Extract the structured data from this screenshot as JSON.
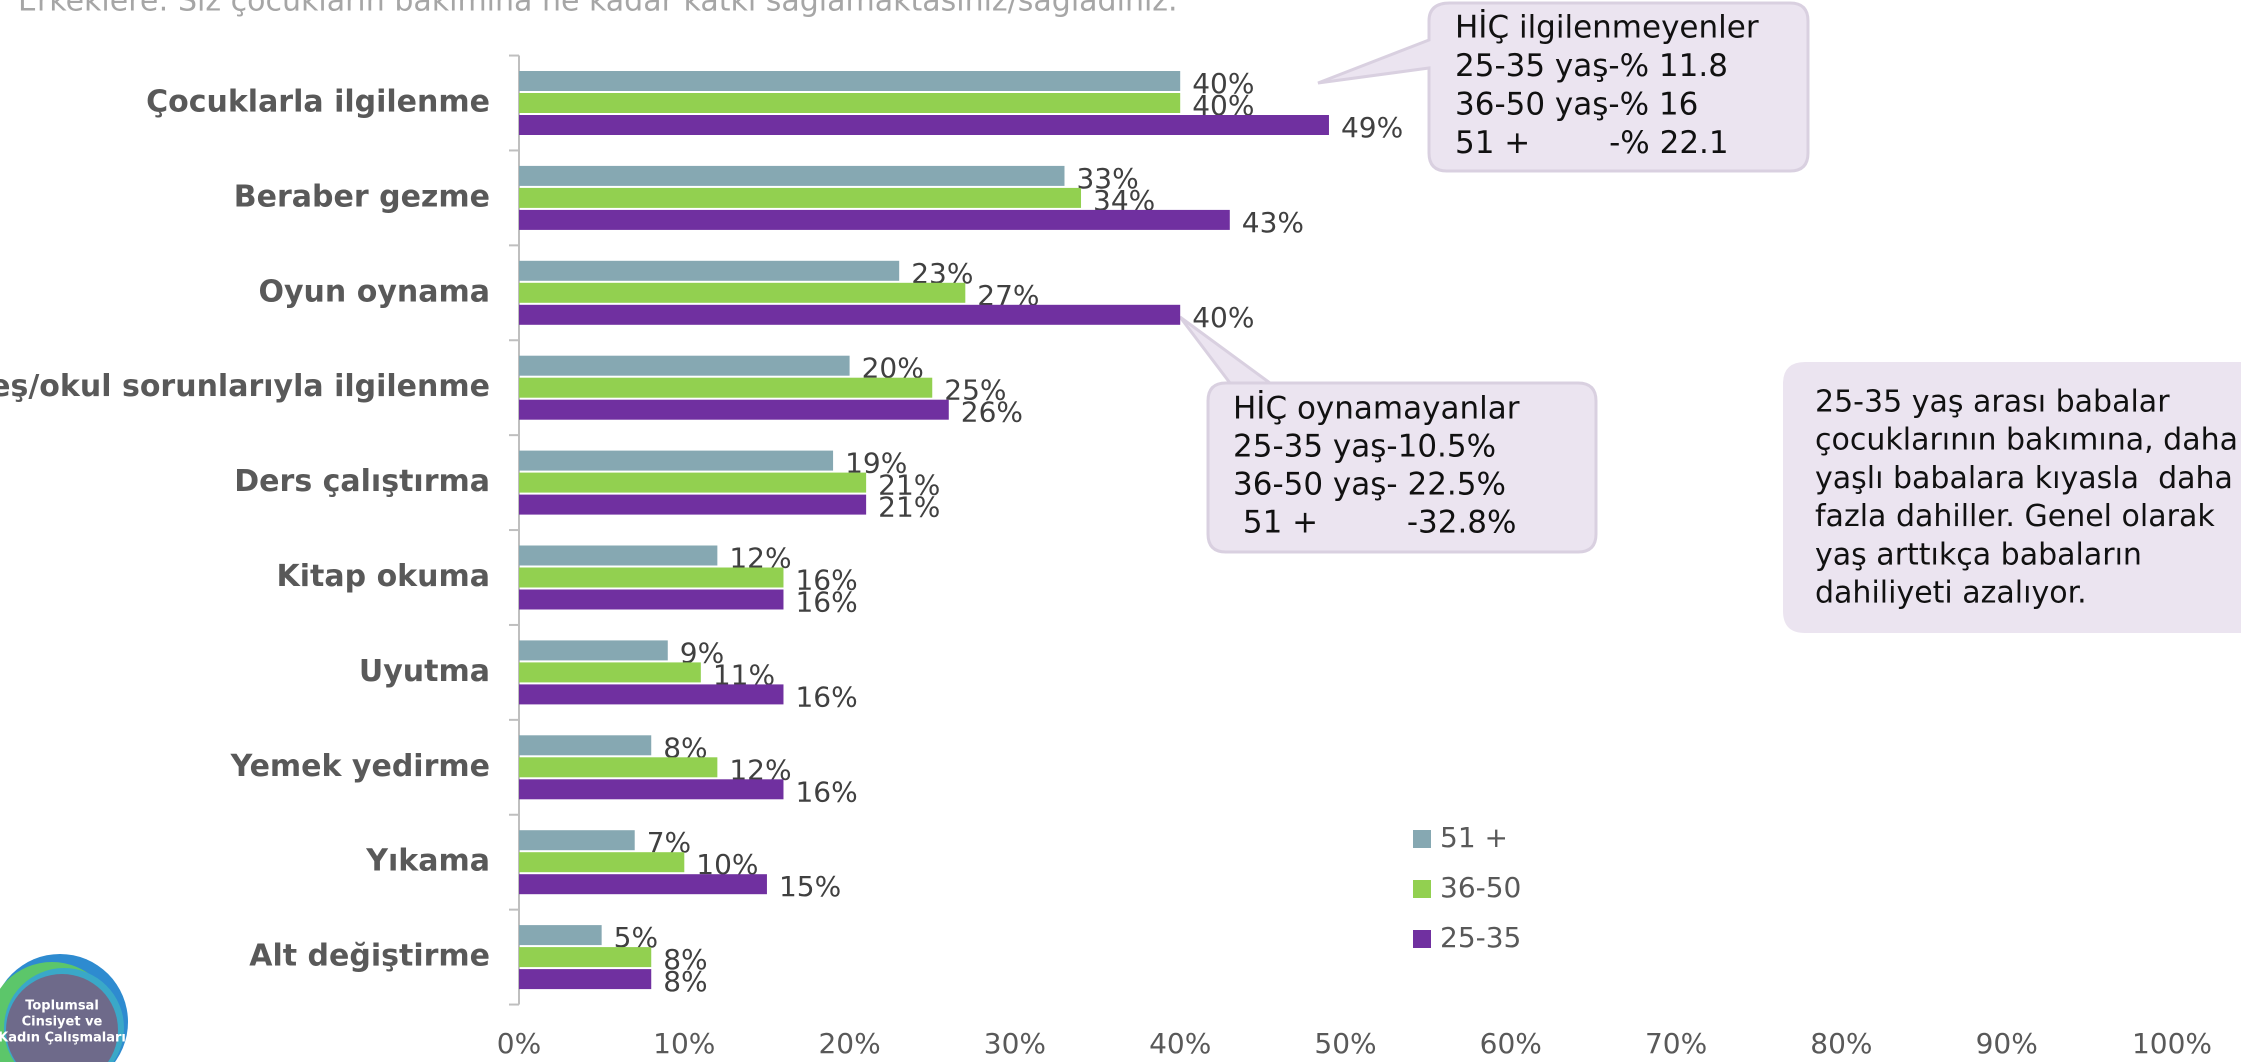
{
  "chart_data": {
    "type": "hbar",
    "title": "Erkeklere: Siz çocukların bakımına ne kadar katkı sağlamaktasınız/sağladınız.",
    "categories": [
      "Çocuklarla ilgilenme",
      "Beraber gezme",
      "Oyun oynama",
      "Kreş/okul sorunlarıyla ilgilenme",
      "Ders çalıştırma",
      "Kitap okuma",
      "Uyutma",
      "Yemek yedirme",
      "Yıkama",
      "Alt değiştirme"
    ],
    "series": [
      {
        "name": "51 +",
        "color": "#86a8b2",
        "values": [
          40,
          33,
          23,
          20,
          19,
          12,
          9,
          8,
          7,
          5
        ],
        "value_labels": [
          "40%",
          "33%",
          "23%",
          "20%",
          "19%",
          "12%",
          "9%",
          "8%",
          "7%",
          "5%"
        ]
      },
      {
        "name": "36-50",
        "color": "#92d050",
        "values": [
          40,
          34,
          27,
          25,
          21,
          16,
          11,
          12,
          10,
          8
        ],
        "value_labels": [
          "40%",
          "34%",
          "27%",
          "25%",
          "21%",
          "16%",
          "11%",
          "12%",
          "10%",
          "8%"
        ]
      },
      {
        "name": "25-35",
        "color": "#7030a0",
        "values": [
          49,
          43,
          40,
          26,
          21,
          16,
          16,
          16,
          15,
          8
        ],
        "value_labels": [
          "49%",
          "43%",
          "40%",
          "26%",
          "21%",
          "16%",
          "16%",
          "16%",
          "15%",
          "8%"
        ]
      }
    ],
    "xlim": [
      0,
      100
    ],
    "xticks": [
      {
        "value": 0,
        "label": "0%"
      },
      {
        "value": 10,
        "label": "10%"
      },
      {
        "value": 20,
        "label": "20%"
      },
      {
        "value": 30,
        "label": "30%"
      },
      {
        "value": 40,
        "label": "40%"
      },
      {
        "value": 50,
        "label": "50%"
      },
      {
        "value": 60,
        "label": "60%"
      },
      {
        "value": 70,
        "label": "70%"
      },
      {
        "value": 80,
        "label": "80%"
      },
      {
        "value": 90,
        "label": "90%"
      },
      {
        "value": 100,
        "label": "100%"
      }
    ],
    "legend": "lower right",
    "annotations": [
      {
        "lines": [
          "HİÇ ilgilenmeyenler",
          "25-35 yaş-% 11.8",
          "36-50 yaş-% 16",
          "51 +        -% 22.1"
        ]
      },
      {
        "lines": [
          "HİÇ oynamayanlar",
          "25-35 yaş-10.5%",
          "36-50 yaş- 22.5%",
          " 51 +         -32.8%"
        ]
      },
      {
        "lines": [
          "25-35 yaş arası babalar",
          "çocuklarının bakımına, daha",
          "yaşlı babalara kıyasla  daha",
          "fazla dahiller. Genel olarak",
          "yaş arttıkça babaların",
          "dahiliyeti azalıyor."
        ]
      }
    ]
  },
  "logo": {
    "lines": [
      "Toplumsal",
      "Cinsiyet ve",
      "Kadın Çalışmaları"
    ]
  }
}
